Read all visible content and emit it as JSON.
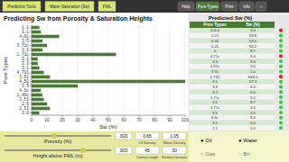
{
  "chart_data": [
    {
      "type": "bar",
      "orientation": "horizontal",
      "title": "Predicting Sw from Porosity & Saturation Heights",
      "xlabel": "Sw (%)",
      "ylabel": "Pore Types",
      "color": "#4a7a35",
      "categories": [
        "3.0",
        "2.52",
        "2.5",
        "2.51",
        "1.46c",
        "4.6c",
        "3.5",
        "4.52",
        "3.51",
        "4.731",
        "3.1",
        "3.3",
        "3.1",
        "1.71c",
        "3.1",
        "3.71c",
        "3.5",
        "4.6c",
        "3.1",
        "1.1"
      ],
      "values": [
        5,
        12,
        10,
        8,
        7,
        6,
        30,
        100,
        12,
        8,
        5,
        4,
        4,
        55,
        7,
        10,
        7,
        18,
        6,
        5
      ],
      "xlim": [
        0,
        100
      ],
      "xticks": [
        0,
        10,
        20,
        30,
        40,
        50,
        60,
        70,
        80,
        90,
        100
      ],
      "grid": true,
      "annotations": [
        "Prediction Tools",
        "Water Saturation (Sw)",
        "FWL",
        "Help",
        "Pore Types",
        "Print",
        "Info",
        "⌷",
        "Porosity (%)",
        "300",
        "Height above FWL (m)",
        "300",
        "Oil Density",
        "0.65",
        "Water Density",
        "1.05",
        "Contact angle",
        "45",
        "Surface tension",
        "30",
        "● Oil",
        "● Water",
        "○ Gas",
        "○ Bri"
      ]
    },
    {
      "type": "table",
      "title": "Predicted Sw (%)",
      "xlabel": "Pore Types",
      "ylabel": "Sw (%)",
      "color": "#4a7a35",
      "categories": [
        "0.0.0",
        "0.21",
        "0.00",
        "0.21",
        "0",
        "4.71c",
        "3.3",
        "4.52c",
        "3.51",
        "4.731",
        "3.1",
        "3.3",
        "3.1",
        "1.71c",
        "3.1",
        "3.71c",
        "3.5",
        "4.6c",
        "3.1",
        "1.1"
      ],
      "values": [
        3.0,
        59.8,
        53.6,
        90.2,
        8.7,
        6.0,
        3.0,
        3.0,
        1.0,
        848.0,
        57.3,
        6.0,
        6.0,
        5.1,
        8.7,
        3.0,
        3.0,
        9.0,
        6.6,
        0.0
      ],
      "value_labels": [
        "3.0",
        "59.8",
        "53.6",
        "90.2",
        "8.7",
        "6.0",
        "3.0",
        "3.0",
        "1.0",
        "848.0",
        "57.3",
        "6.0",
        "6.0",
        "5.1",
        "8.7",
        "3.0",
        "3.0",
        "9.0",
        "6.6",
        "0.0"
      ],
      "colors": [
        "#dd2222",
        "#33cc33",
        "#33cc33",
        "#33cc33",
        "#33cc33",
        "#dd2222",
        "#33cc33",
        "#33cc33",
        "#33cc33",
        "#dd2222",
        "#33cc33",
        "#33cc33",
        "#33cc33",
        "#33cc33",
        "#33cc33",
        "#33cc33",
        "#33cc33",
        "#33cc33",
        "#33cc33",
        "#33cc33"
      ]
    }
  ]
}
